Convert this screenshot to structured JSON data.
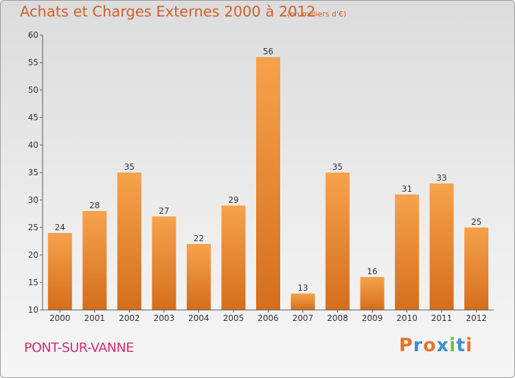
{
  "header": {
    "title": "Achats et Charges Externes 2000 à 2012",
    "subtitle": "(en milliers d'€)"
  },
  "footer": {
    "place": "PONT-SUR-VANNE",
    "brand": "Proxiti"
  },
  "colors": {
    "bar_light": "#f7a24c",
    "bar_dark": "#d46e1c",
    "title": "#d2602a",
    "place": "#d2306a",
    "brand_letters": [
      "#e5722a",
      "#3d8fd6",
      "#e5722a",
      "#3d8fd6",
      "#7bbf3a",
      "#3d8fd6",
      "#e5722a"
    ]
  },
  "chart_data": {
    "type": "bar",
    "title": "Achats et Charges Externes 2000 à 2012",
    "subtitle": "(en milliers d'€)",
    "categories": [
      "2000",
      "2001",
      "2002",
      "2003",
      "2004",
      "2005",
      "2006",
      "2007",
      "2008",
      "2009",
      "2010",
      "2011",
      "2012"
    ],
    "values": [
      24,
      28,
      35,
      27,
      22,
      29,
      56,
      13,
      35,
      16,
      31,
      33,
      25
    ],
    "ylim": [
      10,
      60
    ],
    "yticks": [
      10,
      15,
      20,
      25,
      30,
      35,
      40,
      45,
      50,
      55,
      60
    ],
    "grid": false,
    "legend": "none",
    "data_labels": true
  }
}
